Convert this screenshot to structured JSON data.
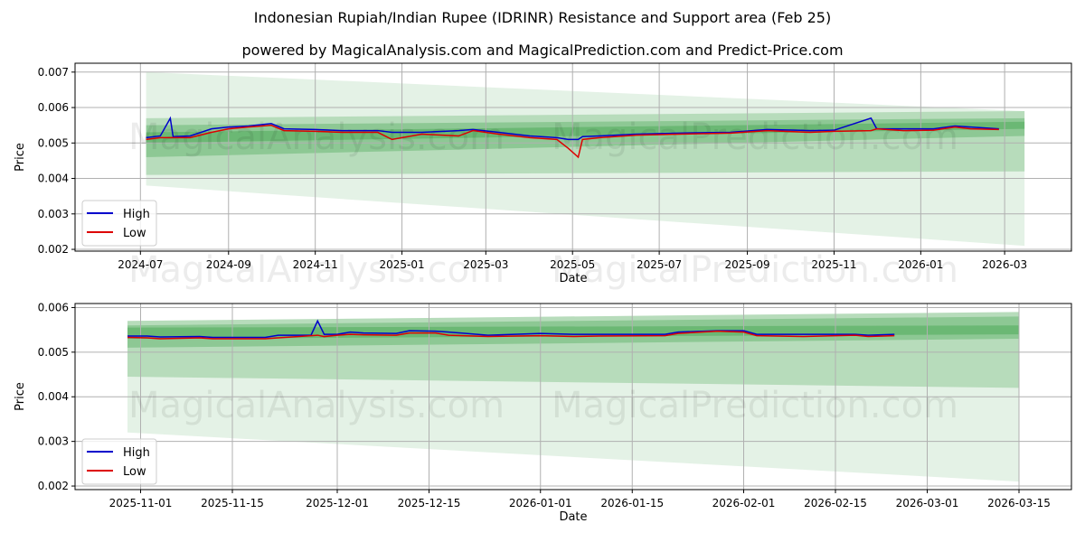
{
  "title": "Indonesian Rupiah/Indian Rupee (IDRINR) Resistance and Support area (Feb 25)",
  "subtitle": "powered by MagicalAnalysis.com and MagicalPrediction.com and Predict-Price.com",
  "watermarks": [
    "MagicalAnalysis.com",
    "MagicalPrediction.com"
  ],
  "colors": {
    "high": "#0000cc",
    "low": "#dd0000",
    "band": "#2e9b3a"
  },
  "chart_data": [
    {
      "type": "line",
      "xlabel": "Date",
      "ylabel": "Price",
      "ylim": [
        0.00195,
        0.00725
      ],
      "xlim": [
        "2024-05-16",
        "2026-04-17"
      ],
      "xticks": [
        "2024-07",
        "2024-09",
        "2024-11",
        "2025-01",
        "2025-03",
        "2025-05",
        "2025-07",
        "2025-09",
        "2025-11",
        "2026-01",
        "2026-03"
      ],
      "yticks": [
        "0.002",
        "0.003",
        "0.004",
        "0.005",
        "0.006",
        "0.007"
      ],
      "legend": {
        "position": "lower-left",
        "entries": [
          "High",
          "Low"
        ]
      },
      "bands": [
        {
          "start": "2024-07-05",
          "end": "2026-03-15",
          "lo": [
            0.0038,
            0.0021
          ],
          "hi": [
            0.007,
            0.0059
          ],
          "opacity": 0.13
        },
        {
          "start": "2024-07-05",
          "end": "2026-03-15",
          "lo": [
            0.0041,
            0.0042
          ],
          "hi": [
            0.0057,
            0.0059
          ],
          "opacity": 0.25
        },
        {
          "start": "2024-07-05",
          "end": "2026-03-15",
          "lo": [
            0.0046,
            0.0052
          ],
          "hi": [
            0.0055,
            0.0057
          ],
          "opacity": 0.3
        },
        {
          "start": "2024-07-05",
          "end": "2026-03-15",
          "lo": [
            0.005,
            0.0054
          ],
          "hi": [
            0.0053,
            0.0056
          ],
          "opacity": 0.35
        }
      ],
      "x": [
        "2024-07-05",
        "2024-07-15",
        "2024-07-22",
        "2024-07-24",
        "2024-08-05",
        "2024-08-20",
        "2024-09-01",
        "2024-09-15",
        "2024-10-01",
        "2024-10-10",
        "2024-11-01",
        "2024-11-20",
        "2024-12-15",
        "2024-12-25",
        "2025-01-15",
        "2025-02-10",
        "2025-02-20",
        "2025-03-10",
        "2025-04-01",
        "2025-04-20",
        "2025-04-28",
        "2025-05-05",
        "2025-05-08",
        "2025-05-20",
        "2025-06-15",
        "2025-07-15",
        "2025-08-20",
        "2025-09-15",
        "2025-10-15",
        "2025-11-01",
        "2025-11-27",
        "2025-12-01",
        "2025-12-20",
        "2026-01-10",
        "2026-01-25",
        "2026-02-05",
        "2026-02-25"
      ],
      "series": [
        {
          "name": "High",
          "values": [
            0.00515,
            0.0052,
            0.0057,
            0.00518,
            0.0052,
            0.0054,
            0.00545,
            0.00548,
            0.00555,
            0.0054,
            0.00538,
            0.00535,
            0.00535,
            0.0053,
            0.0053,
            0.00535,
            0.00538,
            0.0053,
            0.0052,
            0.00515,
            0.0051,
            0.0051,
            0.00518,
            0.0052,
            0.00525,
            0.00528,
            0.0053,
            0.00538,
            0.00535,
            0.00536,
            0.0057,
            0.0054,
            0.0054,
            0.0054,
            0.00548,
            0.00545,
            0.0054
          ]
        },
        {
          "name": "Low",
          "values": [
            0.0051,
            0.00515,
            0.00515,
            0.00515,
            0.00515,
            0.0053,
            0.0054,
            0.00545,
            0.0055,
            0.00535,
            0.00533,
            0.0053,
            0.0053,
            0.0051,
            0.00525,
            0.0052,
            0.00535,
            0.00525,
            0.00515,
            0.0051,
            0.00485,
            0.0046,
            0.0051,
            0.00515,
            0.00522,
            0.00525,
            0.00528,
            0.00535,
            0.0053,
            0.00533,
            0.00535,
            0.0054,
            0.00535,
            0.00536,
            0.00545,
            0.0054,
            0.00538
          ]
        }
      ]
    },
    {
      "type": "line",
      "xlabel": "Date",
      "ylabel": "Price",
      "ylim": [
        0.00192,
        0.00609
      ],
      "xlim": [
        "2025-10-22",
        "2026-03-23"
      ],
      "xticks": [
        "2025-11-01",
        "2025-11-15",
        "2025-12-01",
        "2025-12-15",
        "2026-01-01",
        "2026-01-15",
        "2026-02-01",
        "2026-02-15",
        "2026-03-01",
        "2026-03-15"
      ],
      "yticks": [
        "0.002",
        "0.003",
        "0.004",
        "0.005",
        "0.006"
      ],
      "legend": {
        "position": "lower-left",
        "entries": [
          "High",
          "Low"
        ]
      },
      "bands": [
        {
          "start": "2025-10-30",
          "end": "2026-03-15",
          "lo": [
            0.0032,
            0.0021
          ],
          "hi": [
            0.0057,
            0.0059
          ],
          "opacity": 0.13
        },
        {
          "start": "2025-10-30",
          "end": "2026-03-15",
          "lo": [
            0.00445,
            0.0042
          ],
          "hi": [
            0.0057,
            0.0059
          ],
          "opacity": 0.25
        },
        {
          "start": "2025-10-30",
          "end": "2026-03-15",
          "lo": [
            0.0051,
            0.0053
          ],
          "hi": [
            0.0056,
            0.0058
          ],
          "opacity": 0.3
        },
        {
          "start": "2025-10-30",
          "end": "2026-03-15",
          "lo": [
            0.0053,
            0.0054
          ],
          "hi": [
            0.00555,
            0.0056
          ],
          "opacity": 0.35
        }
      ],
      "x": [
        "2025-10-30",
        "2025-11-02",
        "2025-11-04",
        "2025-11-10",
        "2025-11-12",
        "2025-11-20",
        "2025-11-22",
        "2025-11-27",
        "2025-11-28",
        "2025-11-29",
        "2025-12-01",
        "2025-12-03",
        "2025-12-05",
        "2025-12-10",
        "2025-12-12",
        "2025-12-16",
        "2025-12-18",
        "2025-12-24",
        "2026-01-01",
        "2026-01-06",
        "2026-01-10",
        "2026-01-20",
        "2026-01-22",
        "2026-01-28",
        "2026-02-01",
        "2026-02-03",
        "2026-02-10",
        "2026-02-18",
        "2026-02-20",
        "2026-02-24"
      ],
      "series": [
        {
          "name": "High",
          "values": [
            0.00536,
            0.00536,
            0.00534,
            0.00535,
            0.00533,
            0.00533,
            0.00538,
            0.00538,
            0.0057,
            0.0054,
            0.0054,
            0.00545,
            0.00543,
            0.00542,
            0.00548,
            0.00547,
            0.00545,
            0.00538,
            0.00542,
            0.0054,
            0.0054,
            0.0054,
            0.00545,
            0.00548,
            0.00548,
            0.0054,
            0.0054,
            0.0054,
            0.00538,
            0.0054
          ]
        },
        {
          "name": "Low",
          "values": [
            0.00533,
            0.00532,
            0.0053,
            0.00532,
            0.0053,
            0.0053,
            0.00532,
            0.00537,
            0.00538,
            0.00535,
            0.00538,
            0.0054,
            0.00539,
            0.00538,
            0.00543,
            0.00543,
            0.00538,
            0.00535,
            0.00537,
            0.00535,
            0.00536,
            0.00537,
            0.00542,
            0.00547,
            0.00545,
            0.00537,
            0.00535,
            0.00538,
            0.00535,
            0.00537
          ]
        }
      ]
    }
  ]
}
